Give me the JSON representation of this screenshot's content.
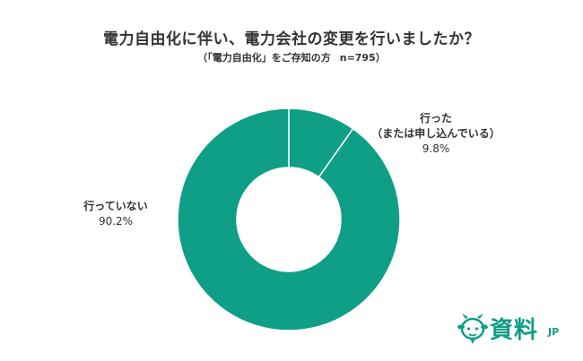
{
  "chart_data": {
    "type": "pie",
    "style": "donut",
    "title": "電力自由化に伴い、電力会社の変更を行いましたか？",
    "subtitle_left": "（「電力自由化」をご存知の方",
    "subtitle_right": "n=795）",
    "slices": [
      {
        "label": "行った",
        "sublabel": "（または申し込んでいる）",
        "value": 9.8,
        "display": "9.8%",
        "color": "#0f9e86"
      },
      {
        "label": "行っていない",
        "sublabel": "",
        "value": 90.2,
        "display": "90.2%",
        "color": "#0f9e86"
      }
    ],
    "start_angle": "12 o'clock",
    "direction": "clockwise",
    "separator_color": "#ffffff"
  },
  "brand": {
    "logo_text": "資料",
    "logo_suffix": "JP",
    "color": "#0f9e86"
  }
}
